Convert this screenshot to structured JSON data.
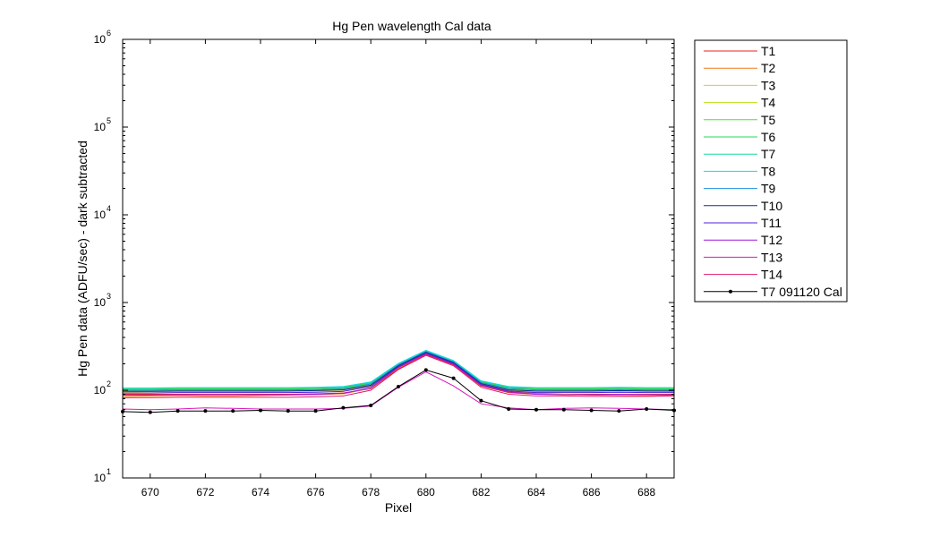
{
  "chart_data": {
    "type": "line",
    "title": "Hg Pen wavelength Cal data",
    "xlabel": "Pixel",
    "ylabel": "Hg Pen data (ADFU/sec) - dark subtracted",
    "xlim": [
      669,
      689
    ],
    "ylim": [
      10,
      1000000
    ],
    "yscale": "log",
    "grid": false,
    "legend_position": "outside-right",
    "x_ticks": [
      670,
      672,
      674,
      676,
      678,
      680,
      682,
      684,
      686,
      688
    ],
    "x_tick_labels": [
      "670",
      "672",
      "674",
      "676",
      "678",
      "680",
      "682",
      "684",
      "686",
      "688"
    ],
    "y_ticks": [
      {
        "value": 10,
        "base": "10",
        "exp": "1"
      },
      {
        "value": 100,
        "base": "10",
        "exp": "2"
      },
      {
        "value": 1000,
        "base": "10",
        "exp": "3"
      },
      {
        "value": 10000,
        "base": "10",
        "exp": "4"
      },
      {
        "value": 100000,
        "base": "10",
        "exp": "5"
      },
      {
        "value": 1000000,
        "base": "10",
        "exp": "6"
      }
    ],
    "x": [
      669,
      670,
      671,
      672,
      673,
      674,
      675,
      676,
      677,
      678,
      679,
      680,
      681,
      682,
      683,
      684,
      685,
      686,
      687,
      688,
      689
    ],
    "series": [
      {
        "name": "T1",
        "color": "#e8201c",
        "marker": false,
        "values": [
          90,
          90,
          90,
          90,
          90,
          90,
          90,
          91,
          93,
          104,
          175,
          255,
          195,
          112,
          94,
          90,
          90,
          90,
          90,
          90,
          90
        ]
      },
      {
        "name": "T2",
        "color": "#f07818",
        "marker": false,
        "values": [
          85,
          86,
          87,
          86,
          86,
          87,
          88,
          89,
          91,
          105,
          180,
          262,
          200,
          115,
          96,
          92,
          90,
          88,
          87,
          86,
          87
        ]
      },
      {
        "name": "T3",
        "color": "#e8c81c",
        "marker": false,
        "values": [
          95,
          96,
          96,
          96,
          96,
          96,
          97,
          98,
          100,
          112,
          188,
          268,
          205,
          118,
          100,
          96,
          96,
          96,
          96,
          96,
          96
        ]
      },
      {
        "name": "T4",
        "color": "#b8e018",
        "marker": false,
        "values": [
          98,
          98,
          99,
          99,
          99,
          99,
          99,
          100,
          102,
          116,
          192,
          272,
          208,
          120,
          102,
          98,
          99,
          99,
          99,
          99,
          99
        ]
      },
      {
        "name": "T5",
        "color": "#50e030",
        "marker": false,
        "values": [
          102,
          102,
          103,
          103,
          103,
          103,
          103,
          104,
          106,
          120,
          196,
          276,
          212,
          124,
          106,
          103,
          103,
          103,
          104,
          103,
          103
        ]
      },
      {
        "name": "T6",
        "color": "#20d858",
        "marker": false,
        "values": [
          104,
          104,
          105,
          105,
          105,
          105,
          105,
          106,
          108,
          122,
          198,
          278,
          214,
          126,
          108,
          105,
          105,
          105,
          106,
          105,
          105
        ]
      },
      {
        "name": "T7",
        "color": "#18d8a0",
        "marker": false,
        "values": [
          105,
          105,
          106,
          106,
          106,
          106,
          106,
          107,
          109,
          123,
          199,
          280,
          215,
          127,
          109,
          106,
          106,
          106,
          107,
          106,
          106
        ]
      },
      {
        "name": "T8",
        "color": "#18d8e0",
        "marker": false,
        "values": [
          106,
          106,
          107,
          107,
          107,
          107,
          107,
          108,
          110,
          124,
          202,
          285,
          218,
          128,
          110,
          107,
          107,
          107,
          108,
          107,
          107
        ]
      },
      {
        "name": "T9",
        "color": "#1890e0",
        "marker": false,
        "values": [
          100,
          100,
          101,
          101,
          101,
          101,
          101,
          102,
          104,
          118,
          194,
          275,
          210,
          122,
          104,
          101,
          101,
          101,
          102,
          101,
          101
        ]
      },
      {
        "name": "T10",
        "color": "#102c90",
        "marker": false,
        "values": [
          97,
          97,
          98,
          98,
          98,
          98,
          98,
          99,
          101,
          114,
          190,
          270,
          206,
          119,
          101,
          98,
          98,
          98,
          99,
          98,
          98
        ]
      },
      {
        "name": "T11",
        "color": "#5020d8",
        "marker": false,
        "values": [
          93,
          93,
          94,
          94,
          94,
          94,
          94,
          95,
          97,
          110,
          185,
          265,
          202,
          116,
          98,
          94,
          94,
          94,
          95,
          94,
          94
        ]
      },
      {
        "name": "T12",
        "color": "#a018d8",
        "marker": false,
        "values": [
          88,
          88,
          89,
          89,
          89,
          89,
          89,
          90,
          92,
          106,
          182,
          260,
          198,
          114,
          96,
          90,
          89,
          89,
          90,
          89,
          89
        ]
      },
      {
        "name": "T13",
        "color": "#d818c0",
        "marker": false,
        "values": [
          61,
          60,
          61,
          63,
          62,
          61,
          61,
          61,
          62,
          66,
          108,
          162,
          112,
          70,
          63,
          60,
          62,
          63,
          62,
          61,
          60
        ]
      },
      {
        "name": "T14",
        "color": "#e01870",
        "marker": false,
        "values": [
          82,
          82,
          83,
          83,
          83,
          83,
          83,
          84,
          86,
          100,
          172,
          250,
          190,
          108,
          90,
          86,
          86,
          85,
          85,
          85,
          86
        ]
      },
      {
        "name": "T7 091120 Cal",
        "color": "#000000",
        "marker": true,
        "values": [
          57,
          56,
          58,
          58,
          58,
          59,
          58,
          58,
          63,
          67,
          110,
          170,
          137,
          76,
          61,
          60,
          60,
          59,
          58,
          61,
          59
        ]
      }
    ]
  }
}
